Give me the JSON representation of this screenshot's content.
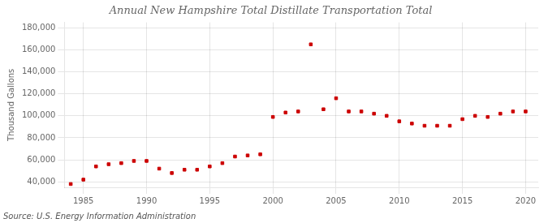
{
  "chart_data": {
    "type": "scatter",
    "title": "Annual New Hampshire Total Distillate Transportation Total",
    "y_label": "Thousand Gallons",
    "annotations": [
      "Source: U.S. Energy Information Administration"
    ],
    "x": [
      1984,
      1985,
      1986,
      1987,
      1988,
      1989,
      1990,
      1991,
      1992,
      1993,
      1994,
      1995,
      1996,
      1997,
      1998,
      1999,
      2000,
      2001,
      2002,
      2003,
      2004,
      2005,
      2006,
      2007,
      2008,
      2009,
      2010,
      2011,
      2012,
      2013,
      2014,
      2015,
      2016,
      2017,
      2018,
      2019,
      2020
    ],
    "values": [
      38000,
      42000,
      54000,
      56000,
      57000,
      59000,
      59000,
      52000,
      48000,
      51000,
      51000,
      54000,
      57000,
      63000,
      64000,
      65000,
      99000,
      103000,
      104000,
      165000,
      106000,
      116000,
      104000,
      104000,
      102000,
      100000,
      95000,
      93000,
      91000,
      91000,
      91000,
      97000,
      100000,
      99000,
      102000,
      104000,
      104000
    ],
    "color": "#cc0000",
    "marker": "square",
    "xlim": [
      1983.5,
      2021
    ],
    "xticks": [
      1985,
      1990,
      1995,
      2000,
      2005,
      2010,
      2015,
      2020
    ],
    "ylim": [
      35000,
      185000
    ],
    "yticks": [
      {
        "value": 40000,
        "label": "40,000"
      },
      {
        "value": 60000,
        "label": "60,000"
      },
      {
        "value": 80000,
        "label": "80,000"
      },
      {
        "value": 100000,
        "label": "100,000"
      },
      {
        "value": 120000,
        "label": "120,000"
      },
      {
        "value": 140000,
        "label": "140,000"
      },
      {
        "value": 160000,
        "label": "160,000"
      },
      {
        "value": 180000,
        "label": "180,000"
      }
    ],
    "grid": true
  }
}
